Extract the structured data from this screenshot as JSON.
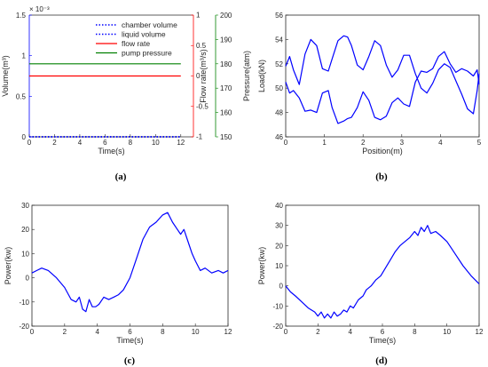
{
  "chart_data": [
    {
      "type": "line",
      "caption": "(a)",
      "xlabel": "Time(s)",
      "xlim": [
        0,
        13
      ],
      "xticks": [
        "0",
        "2",
        "4",
        "6",
        "8",
        "10",
        "12"
      ],
      "y_axes": [
        {
          "side": "left",
          "label": "Volume(m³)",
          "exponent": "× 10⁻³",
          "color": "#0000ff",
          "ylim": [
            0,
            1.5
          ],
          "ticks": [
            "0",
            "0.5",
            "1",
            "1.5"
          ]
        },
        {
          "side": "right",
          "label": "Flow rate(m³/s)",
          "color": "#ff0000",
          "ylim": [
            -1,
            1
          ],
          "ticks": [
            "-1",
            "-0.5",
            "0",
            "0.5",
            "1"
          ]
        },
        {
          "side": "right-outer",
          "label": "Pressure(atm)",
          "color": "#008000",
          "ylim": [
            150,
            200
          ],
          "ticks": [
            "150",
            "160",
            "170",
            "180",
            "190",
            "200"
          ]
        }
      ],
      "legend": {
        "position": "top-right"
      },
      "series": [
        {
          "name": "chamber volume",
          "axis": 0,
          "style": "dotted",
          "color": "#0000ff",
          "x": [
            0,
            12
          ],
          "y": [
            0.0012,
            0.0012
          ]
        },
        {
          "name": "liquid volume",
          "axis": 0,
          "style": "dotted",
          "color": "#0000ff",
          "x": [
            0,
            12
          ],
          "y": [
            0,
            0
          ]
        },
        {
          "name": "flow rate",
          "axis": 1,
          "style": "solid",
          "color": "#ff0000",
          "x": [
            0,
            12
          ],
          "y": [
            0,
            0
          ]
        },
        {
          "name": "pump pressure",
          "axis": 2,
          "style": "solid",
          "color": "#008000",
          "x": [
            0,
            12
          ],
          "y": [
            180,
            180
          ]
        }
      ]
    },
    {
      "type": "line",
      "caption": "(b)",
      "xlabel": "Position(m)",
      "ylabel": "Load(kN)",
      "xlim": [
        0,
        5
      ],
      "ylim": [
        46,
        56
      ],
      "xticks": [
        "0",
        "1",
        "2",
        "3",
        "4",
        "5"
      ],
      "yticks": [
        "46",
        "48",
        "50",
        "52",
        "54",
        "56"
      ],
      "series": [
        {
          "color": "#0000ff",
          "x": [
            0,
            0.1,
            0.2,
            0.35,
            0.5,
            0.65,
            0.8,
            0.95,
            1.1,
            1.2,
            1.35,
            1.5,
            1.6,
            1.7,
            1.85,
            2.0,
            2.15,
            2.3,
            2.45,
            2.6,
            2.75,
            2.9,
            3.05,
            3.2,
            3.35,
            3.5,
            3.65,
            3.8,
            3.95,
            4.1,
            4.25,
            4.4,
            4.55,
            4.7,
            4.85,
            4.95,
            5.0
          ],
          "y": [
            51.8,
            52.6,
            51.5,
            50.3,
            52.8,
            54.0,
            53.5,
            51.6,
            51.4,
            52.4,
            53.9,
            54.3,
            54.2,
            53.5,
            51.9,
            51.5,
            52.6,
            53.9,
            53.5,
            51.9,
            50.9,
            51.5,
            52.7,
            52.7,
            51.2,
            50.0,
            49.6,
            50.4,
            51.5,
            52.0,
            51.7,
            50.6,
            49.5,
            48.3,
            47.9,
            49.8,
            51.2
          ]
        },
        {
          "color": "#0000ff",
          "x": [
            0,
            0.1,
            0.2,
            0.35,
            0.5,
            0.65,
            0.8,
            0.95,
            1.1,
            1.2,
            1.35,
            1.5,
            1.6,
            1.7,
            1.85,
            2.0,
            2.15,
            2.3,
            2.45,
            2.6,
            2.75,
            2.9,
            3.05,
            3.2,
            3.35,
            3.5,
            3.65,
            3.8,
            3.95,
            4.1,
            4.25,
            4.4,
            4.55,
            4.7,
            4.85,
            4.95,
            5.0
          ],
          "y": [
            50.5,
            49.6,
            49.8,
            49.2,
            48.1,
            48.2,
            48.0,
            49.6,
            49.8,
            48.4,
            47.1,
            47.3,
            47.5,
            47.6,
            48.4,
            49.7,
            49.0,
            47.6,
            47.4,
            47.7,
            48.8,
            49.2,
            48.7,
            48.5,
            50.5,
            51.4,
            51.3,
            51.6,
            52.6,
            53.0,
            52.0,
            51.3,
            51.6,
            51.4,
            51.0,
            51.5,
            50.3
          ]
        }
      ]
    },
    {
      "type": "line",
      "caption": "(c)",
      "xlabel": "Time(s)",
      "ylabel": "Power(kw)",
      "xlim": [
        0,
        12
      ],
      "ylim": [
        -20,
        30
      ],
      "xticks": [
        "0",
        "2",
        "4",
        "6",
        "8",
        "10",
        "12"
      ],
      "yticks": [
        "-20",
        "-10",
        "0",
        "10",
        "20",
        "30"
      ],
      "series": [
        {
          "color": "#0000ff",
          "x": [
            0,
            0.3,
            0.6,
            1.0,
            1.5,
            2.0,
            2.4,
            2.7,
            2.9,
            3.1,
            3.3,
            3.5,
            3.7,
            3.9,
            4.1,
            4.4,
            4.7,
            5.0,
            5.3,
            5.6,
            6.0,
            6.4,
            6.8,
            7.2,
            7.6,
            8.0,
            8.3,
            8.6,
            8.9,
            9.1,
            9.3,
            9.6,
            9.8,
            10.0,
            10.3,
            10.6,
            11.0,
            11.4,
            11.7,
            12.0
          ],
          "y": [
            2,
            3,
            4,
            3,
            0,
            -4,
            -9,
            -10,
            -8,
            -13,
            -14,
            -9,
            -12,
            -12,
            -11,
            -8,
            -9,
            -8,
            -7,
            -5,
            0,
            8,
            16,
            21,
            23,
            26,
            27,
            23,
            20,
            18,
            20,
            14,
            10,
            7,
            3,
            4,
            2,
            3,
            2,
            3
          ]
        }
      ]
    },
    {
      "type": "line",
      "caption": "(d)",
      "xlabel": "Time(s)",
      "ylabel": "Power(kw)",
      "xlim": [
        0,
        12
      ],
      "ylim": [
        -20,
        40
      ],
      "xticks": [
        "0",
        "2",
        "4",
        "6",
        "8",
        "10",
        "12"
      ],
      "yticks": [
        "-20",
        "-10",
        "0",
        "10",
        "20",
        "30",
        "40"
      ],
      "series": [
        {
          "color": "#0000ff",
          "x": [
            0,
            0.3,
            0.6,
            1.0,
            1.4,
            1.8,
            2.0,
            2.2,
            2.4,
            2.6,
            2.8,
            3.0,
            3.2,
            3.4,
            3.6,
            3.8,
            4.0,
            4.2,
            4.5,
            4.8,
            5.0,
            5.3,
            5.6,
            5.9,
            6.2,
            6.5,
            6.8,
            7.1,
            7.4,
            7.7,
            8.0,
            8.2,
            8.4,
            8.6,
            8.8,
            9.0,
            9.3,
            9.6,
            10.0,
            10.5,
            11.0,
            11.5,
            12.0
          ],
          "y": [
            0,
            -3,
            -5,
            -8,
            -11,
            -13,
            -15,
            -13,
            -16,
            -14,
            -16,
            -13,
            -15,
            -14,
            -12,
            -13,
            -10,
            -11,
            -7,
            -5,
            -2,
            0,
            3,
            5,
            9,
            13,
            17,
            20,
            22,
            24,
            27,
            25,
            29,
            27,
            30,
            26,
            27,
            25,
            22,
            16,
            10,
            5,
            1
          ]
        }
      ]
    }
  ]
}
